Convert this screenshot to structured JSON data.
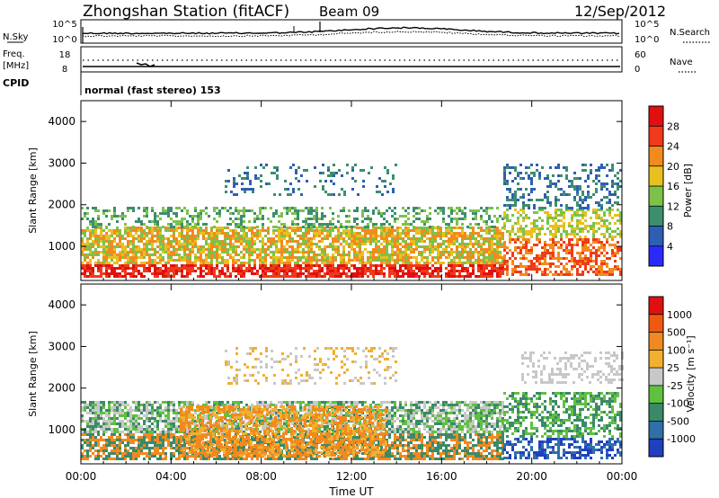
{
  "header": {
    "station": "Zhongshan Station (fitACF)",
    "beam": "Beam 09",
    "date": "12/Sep/2012"
  },
  "noise_panel": {
    "left_label": "N.Sky",
    "right_label": "N.Search",
    "left_ticks": [
      "10^5",
      "10^0"
    ],
    "right_ticks": [
      "10^5",
      "10^0"
    ]
  },
  "freq_panel": {
    "left_label_line1": "Freq.",
    "left_label_line2": "[MHz]",
    "right_label": "Nave",
    "left_ticks": [
      "18",
      "8"
    ],
    "right_ticks": [
      "60",
      "0"
    ],
    "mode_label": "CPID",
    "mode_text": "normal (fast stereo) 153"
  },
  "chart_data": [
    {
      "type": "heatmap",
      "title": "",
      "ylabel": "Slant Range [km]",
      "xlabel": "",
      "yticks": [
        "1000",
        "2000",
        "3000",
        "4000"
      ],
      "ylim": [
        180,
        4500
      ],
      "colorbar_label": "Power [dB]",
      "colorbar_ticks": [
        "4",
        "8",
        "12",
        "16",
        "20",
        "24",
        "28"
      ],
      "colorbar_colors": [
        "#2a2aff",
        "#2e5fb4",
        "#3c8e6e",
        "#7cc24a",
        "#e8c020",
        "#f28a1e",
        "#f03a1a",
        "#e01010"
      ],
      "xticks": [
        "00:00",
        "04:00",
        "08:00",
        "12:00",
        "16:00",
        "20:00",
        "00:00"
      ]
    },
    {
      "type": "heatmap",
      "title": "",
      "ylabel": "Slant Range [km]",
      "xlabel": "Time UT",
      "yticks": [
        "1000",
        "2000",
        "3000",
        "4000"
      ],
      "ylim": [
        180,
        4500
      ],
      "colorbar_label": "Velocity [m s⁻¹]",
      "colorbar_ticks": [
        "1000",
        "500",
        "100",
        "25",
        "-25",
        "-100",
        "-500",
        "-1000"
      ],
      "colorbar_colors": [
        "#2040c0",
        "#3070a8",
        "#3a8a6a",
        "#60c040",
        "#c8c8c8",
        "#f0b030",
        "#f08a20",
        "#f05a10",
        "#e01010"
      ],
      "xticks": [
        "00:00",
        "04:00",
        "08:00",
        "12:00",
        "16:00",
        "20:00",
        "00:00"
      ]
    }
  ]
}
